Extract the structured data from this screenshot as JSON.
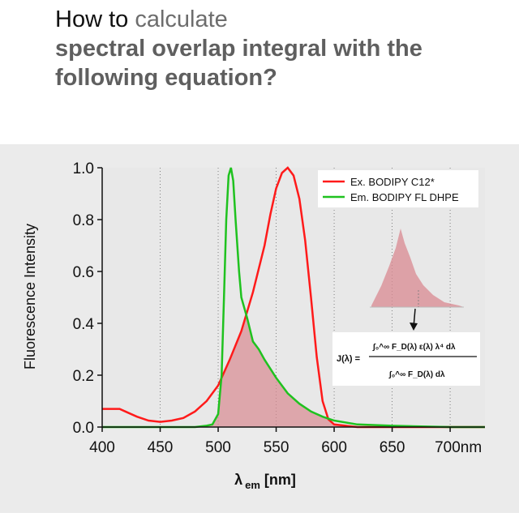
{
  "heading": {
    "line1_prefix": "How to",
    "line1_rest": "calculate",
    "line2": "spectral overlap integral with the",
    "line3": "following equation?"
  },
  "colors": {
    "excitation": "#ff1a1a",
    "emission": "#1fc21f",
    "overlap_fill": "#d98a92",
    "plot_bg": "#e8e8e8"
  },
  "chart_data": {
    "type": "line",
    "xlabel": "λ em [nm]",
    "xlabel_main": "λ",
    "xlabel_sub": "em",
    "xlabel_unit": "[nm]",
    "ylabel": "Fluorescence Intensity",
    "xlim": [
      400,
      730
    ],
    "ylim": [
      0,
      1.0
    ],
    "x_ticks": [
      400,
      450,
      500,
      550,
      600,
      650,
      700
    ],
    "x_tick_labels": [
      "400",
      "450",
      "500",
      "550",
      "600",
      "650",
      "700nm"
    ],
    "y_ticks": [
      0.0,
      0.2,
      0.4,
      0.6,
      0.8,
      1.0
    ],
    "y_tick_labels": [
      "0.0",
      "0.2",
      "0.4",
      "0.6",
      "0.8",
      "1.0"
    ],
    "grid": "vertical dotted",
    "legend_position": "top-right",
    "series": [
      {
        "name": "Ex. BODIPY C12*",
        "color": "#ff1a1a",
        "x": [
          400,
          410,
          415,
          420,
          430,
          440,
          450,
          460,
          470,
          480,
          490,
          500,
          510,
          520,
          530,
          540,
          545,
          550,
          555,
          560,
          565,
          570,
          575,
          580,
          585,
          590,
          595,
          600,
          610,
          620,
          650,
          700,
          730
        ],
        "y": [
          0.07,
          0.07,
          0.07,
          0.06,
          0.04,
          0.025,
          0.02,
          0.025,
          0.035,
          0.06,
          0.1,
          0.16,
          0.26,
          0.37,
          0.52,
          0.7,
          0.82,
          0.92,
          0.98,
          1.0,
          0.97,
          0.88,
          0.72,
          0.5,
          0.27,
          0.1,
          0.03,
          0.01,
          0.005,
          0.0,
          0.0,
          0.0,
          0.0
        ]
      },
      {
        "name": "Em. BODIPY FL DHPE",
        "color": "#1fc21f",
        "x": [
          400,
          450,
          480,
          490,
          495,
          500,
          503,
          505,
          507,
          509,
          511,
          513,
          515,
          518,
          520,
          525,
          530,
          535,
          540,
          550,
          560,
          570,
          580,
          590,
          600,
          620,
          650,
          700,
          730
        ],
        "y": [
          0.0,
          0.0,
          0.0,
          0.005,
          0.01,
          0.05,
          0.2,
          0.5,
          0.8,
          0.97,
          1.0,
          0.95,
          0.8,
          0.6,
          0.5,
          0.42,
          0.33,
          0.3,
          0.26,
          0.19,
          0.13,
          0.09,
          0.06,
          0.04,
          0.025,
          0.01,
          0.005,
          0.0,
          0.0
        ]
      }
    ],
    "annotation": {
      "equation_lhs": "J(λ) =",
      "numerator": "∫₀^∞ F_D(λ) ε(λ) λ⁴ dλ",
      "denominator": "∫₀^∞ F_D(λ) dλ"
    }
  }
}
